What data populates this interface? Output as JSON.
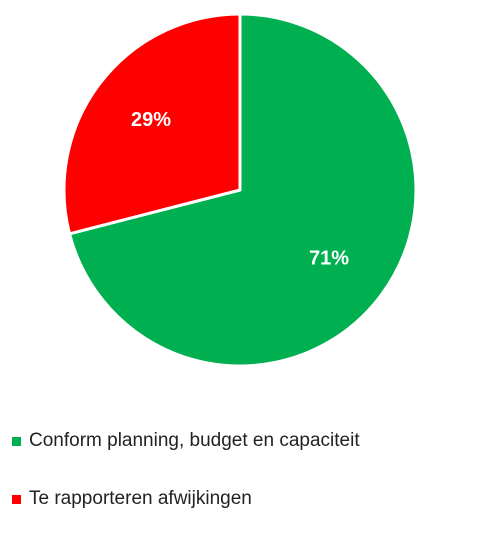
{
  "chart_data": {
    "type": "pie",
    "categories": [
      "Conform planning, budget en capaciteit",
      "Te rapporteren afwijkingen"
    ],
    "values": [
      71,
      29
    ],
    "data_labels": [
      "71%",
      "29%"
    ],
    "colors": [
      "#00b050",
      "#ff0000"
    ],
    "start_angle_deg": 0,
    "direction": "clockwise",
    "legend_position": "bottom-left"
  }
}
